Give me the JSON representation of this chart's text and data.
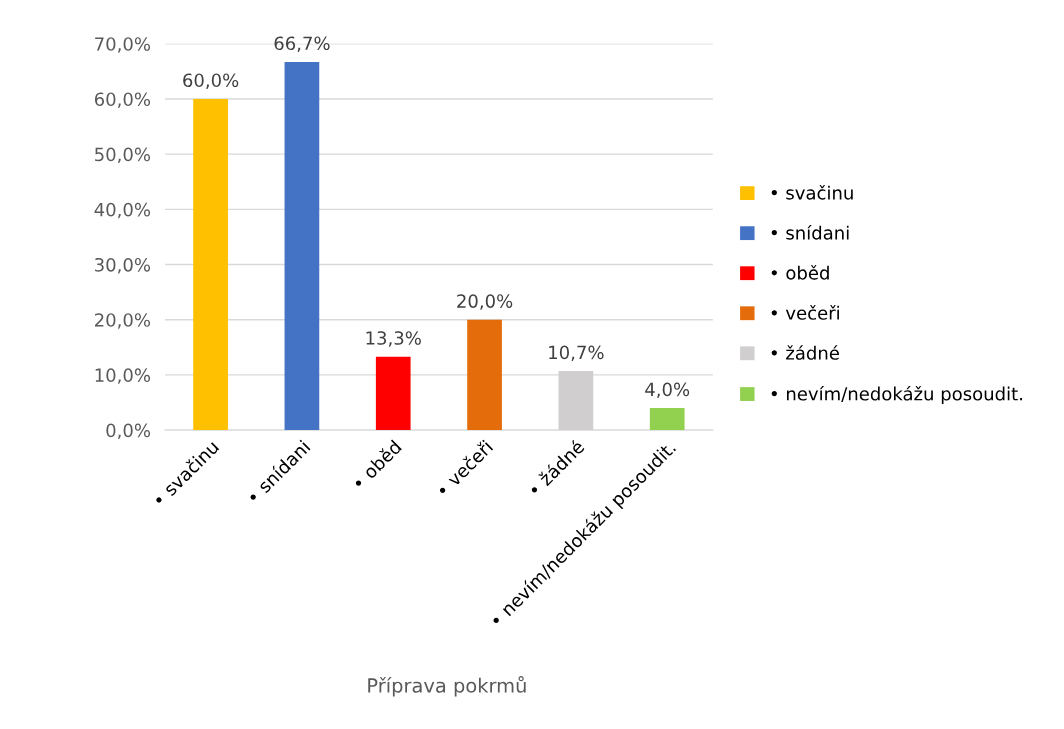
{
  "chart_data": {
    "type": "bar",
    "categories": [
      "• svačinu",
      "• snídani",
      "• oběd",
      "• večeři",
      "• žádné",
      "• nevím/nedokážu posoudit."
    ],
    "series": [
      {
        "name": "• svačinu",
        "color": "#ffc000",
        "values": [
          60.0,
          null,
          null,
          null,
          null,
          null
        ],
        "value_labels": [
          "60,0%",
          null,
          null,
          null,
          null,
          null
        ]
      },
      {
        "name": "• snídani",
        "color": "#4472c4",
        "values": [
          null,
          66.7,
          null,
          null,
          null,
          null
        ],
        "value_labels": [
          null,
          "66,7%",
          null,
          null,
          null,
          null
        ]
      },
      {
        "name": "• oběd",
        "color": "#ff0000",
        "values": [
          null,
          null,
          13.3,
          null,
          null,
          null
        ],
        "value_labels": [
          null,
          null,
          "13,3%",
          null,
          null,
          null
        ]
      },
      {
        "name": "• večeři",
        "color": "#e46c0a",
        "values": [
          null,
          null,
          null,
          20.0,
          null,
          null
        ],
        "value_labels": [
          null,
          null,
          null,
          "20,0%",
          null,
          null
        ]
      },
      {
        "name": "• žádné",
        "color": "#d0cece",
        "values": [
          null,
          null,
          null,
          null,
          10.7,
          null
        ],
        "value_labels": [
          null,
          null,
          null,
          null,
          "10,7%",
          null
        ]
      },
      {
        "name": "• nevím/nedokážu posoudit.",
        "color": "#92d050",
        "values": [
          null,
          null,
          null,
          null,
          null,
          4.0
        ],
        "value_labels": [
          null,
          null,
          null,
          null,
          null,
          "4,0%"
        ]
      }
    ],
    "ylim": [
      0,
      70
    ],
    "yticks": [
      {
        "value": 0,
        "label": "0,0%"
      },
      {
        "value": 10,
        "label": "10,0%"
      },
      {
        "value": 20,
        "label": "20,0%"
      },
      {
        "value": 30,
        "label": "30,0%"
      },
      {
        "value": 40,
        "label": "40,0%"
      },
      {
        "value": 50,
        "label": "50,0%"
      },
      {
        "value": 60,
        "label": "60,0%"
      },
      {
        "value": 70,
        "label": "70,0%"
      }
    ],
    "xlabel": "Příprava pokrmů",
    "grid": "y",
    "legend": "right"
  }
}
